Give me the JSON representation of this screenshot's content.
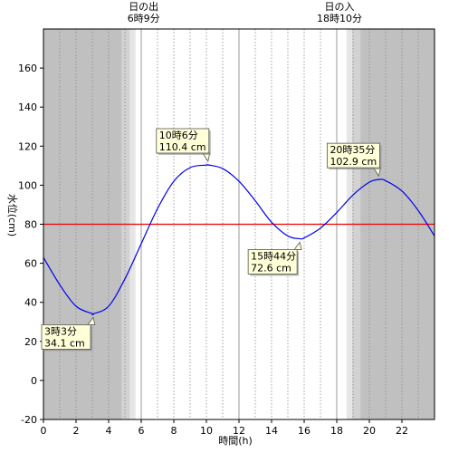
{
  "chart_data": {
    "type": "line",
    "xlabel": "時間(h)",
    "ylabel": "水位(cm)",
    "xlim": [
      0,
      24
    ],
    "ylim": [
      -20,
      180
    ],
    "x_ticks": [
      0,
      2,
      4,
      6,
      8,
      10,
      12,
      14,
      16,
      18,
      20,
      22
    ],
    "y_ticks": [
      -20,
      0,
      20,
      40,
      60,
      80,
      100,
      120,
      140,
      160
    ],
    "grid": {
      "vertical_dotted_every_h": 1,
      "vertical_solid_every_h": 6,
      "horizontal": false
    },
    "colors": {
      "tide_line": "#0000ee",
      "reference_line": "#ee0000",
      "night": "#c0c0c0",
      "twilight_dark": "#d2d2d2",
      "twilight_light": "#e6e6e6"
    },
    "shading": [
      {
        "kind": "night",
        "from": 0,
        "to": 4.8
      },
      {
        "kind": "twilight_dark",
        "from": 4.8,
        "to": 5.3
      },
      {
        "kind": "twilight_light",
        "from": 5.3,
        "to": 5.65
      },
      {
        "kind": "twilight_light",
        "from": 18.6,
        "to": 18.95
      },
      {
        "kind": "twilight_dark",
        "from": 18.95,
        "to": 19.45
      },
      {
        "kind": "night",
        "from": 19.45,
        "to": 24
      }
    ],
    "reference_level": 80,
    "series": [
      {
        "x": [
          0,
          1,
          2,
          3,
          3.05,
          4,
          5,
          6,
          7,
          8,
          9,
          10,
          10.1,
          11,
          12,
          13,
          14,
          15,
          15.73,
          16,
          17,
          18,
          19,
          20,
          20.58,
          21,
          22,
          23,
          24
        ],
        "values": [
          63,
          49,
          38,
          34.2,
          34.1,
          38,
          52,
          70,
          88,
          102,
          109,
          110.3,
          110.4,
          108.5,
          102,
          92,
          81,
          74,
          72.6,
          73,
          78,
          86,
          95,
          101.5,
          102.9,
          102.3,
          97,
          87,
          74
        ]
      }
    ],
    "annotations": [
      {
        "line1": "3時3分",
        "line2": "34.1 cm",
        "x": 3.05,
        "y": 34.1,
        "side": "below"
      },
      {
        "line1": "10時6分",
        "line2": "110.4 cm",
        "x": 10.1,
        "y": 110.4,
        "side": "above"
      },
      {
        "line1": "15時44分",
        "line2": "72.6 cm",
        "x": 15.73,
        "y": 72.6,
        "side": "below"
      },
      {
        "line1": "20時35分",
        "line2": "102.9 cm",
        "x": 20.58,
        "y": 102.9,
        "side": "above"
      }
    ],
    "sun": [
      {
        "line1": "日の出",
        "line2": "6時9分",
        "x": 6.15
      },
      {
        "line1": "日の入",
        "line2": "18時10分",
        "x": 18.17
      }
    ]
  }
}
